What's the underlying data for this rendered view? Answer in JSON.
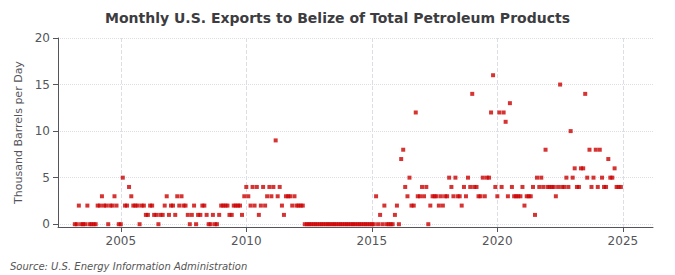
{
  "chart_data": {
    "type": "scatter",
    "title": "Monthly U.S. Exports to Belize of Total Petroleum Products",
    "ylabel": "Thousand Barrels per Day",
    "annotations": [
      "Source: U.S. Energy Information Administration"
    ],
    "color": "#cc0000",
    "marker": "square",
    "grid": true,
    "xlim": [
      2002.5,
      2026.2
    ],
    "xticks": [
      2005,
      2010,
      2015,
      2020,
      2025
    ],
    "ylim": [
      -0.3,
      20
    ],
    "yticks": [
      0,
      5,
      10,
      15,
      20
    ],
    "x": [
      2003.17,
      2003.25,
      2003.33,
      2003.42,
      2003.5,
      2003.58,
      2003.67,
      2003.75,
      2003.83,
      2003.92,
      2004.0,
      2004.08,
      2004.17,
      2004.25,
      2004.33,
      2004.42,
      2004.5,
      2004.58,
      2004.67,
      2004.75,
      2004.83,
      2004.92,
      2005.0,
      2005.08,
      2005.17,
      2005.25,
      2005.33,
      2005.42,
      2005.5,
      2005.58,
      2005.67,
      2005.75,
      2005.83,
      2005.92,
      2006.0,
      2006.08,
      2006.17,
      2006.25,
      2006.33,
      2006.42,
      2006.5,
      2006.58,
      2006.67,
      2006.75,
      2006.83,
      2006.92,
      2007.0,
      2007.08,
      2007.17,
      2007.25,
      2007.33,
      2007.42,
      2007.5,
      2007.58,
      2007.67,
      2007.75,
      2007.83,
      2007.92,
      2008.0,
      2008.08,
      2008.17,
      2008.25,
      2008.33,
      2008.42,
      2008.5,
      2008.58,
      2008.67,
      2008.75,
      2008.83,
      2008.92,
      2009.0,
      2009.08,
      2009.17,
      2009.25,
      2009.33,
      2009.42,
      2009.5,
      2009.58,
      2009.67,
      2009.75,
      2009.83,
      2009.92,
      2010.0,
      2010.08,
      2010.17,
      2010.25,
      2010.33,
      2010.42,
      2010.5,
      2010.58,
      2010.67,
      2010.75,
      2010.83,
      2010.92,
      2011.0,
      2011.08,
      2011.17,
      2011.25,
      2011.33,
      2011.42,
      2011.5,
      2011.58,
      2011.67,
      2011.75,
      2011.83,
      2011.92,
      2012.0,
      2012.08,
      2012.17,
      2012.25,
      2012.33,
      2012.42,
      2012.5,
      2012.58,
      2012.67,
      2012.75,
      2012.83,
      2012.92,
      2013.0,
      2013.08,
      2013.17,
      2013.25,
      2013.33,
      2013.42,
      2013.5,
      2013.58,
      2013.67,
      2013.75,
      2013.83,
      2013.92,
      2014.0,
      2014.08,
      2014.17,
      2014.25,
      2014.33,
      2014.42,
      2014.5,
      2014.58,
      2014.67,
      2014.75,
      2014.83,
      2014.92,
      2015.0,
      2015.08,
      2015.17,
      2015.25,
      2015.33,
      2015.42,
      2015.5,
      2015.58,
      2015.67,
      2015.75,
      2015.83,
      2015.92,
      2016.0,
      2016.08,
      2016.17,
      2016.25,
      2016.33,
      2016.42,
      2016.5,
      2016.58,
      2016.67,
      2016.75,
      2016.83,
      2016.92,
      2017.0,
      2017.08,
      2017.17,
      2017.25,
      2017.33,
      2017.42,
      2017.5,
      2017.58,
      2017.67,
      2017.75,
      2017.83,
      2017.92,
      2018.0,
      2018.08,
      2018.17,
      2018.25,
      2018.33,
      2018.42,
      2018.5,
      2018.58,
      2018.67,
      2018.75,
      2018.83,
      2018.92,
      2019.0,
      2019.08,
      2019.17,
      2019.25,
      2019.33,
      2019.42,
      2019.5,
      2019.58,
      2019.67,
      2019.75,
      2019.83,
      2019.92,
      2020.0,
      2020.08,
      2020.17,
      2020.25,
      2020.33,
      2020.42,
      2020.5,
      2020.58,
      2020.67,
      2020.75,
      2020.83,
      2020.92,
      2021.0,
      2021.08,
      2021.17,
      2021.25,
      2021.33,
      2021.42,
      2021.5,
      2021.58,
      2021.67,
      2021.75,
      2021.83,
      2021.92,
      2022.0,
      2022.08,
      2022.17,
      2022.25,
      2022.33,
      2022.42,
      2022.5,
      2022.58,
      2022.67,
      2022.75,
      2022.83,
      2022.92,
      2023.0,
      2023.08,
      2023.17,
      2023.25,
      2023.33,
      2023.42,
      2023.5,
      2023.58,
      2023.67,
      2023.75,
      2023.83,
      2023.92,
      2024.0,
      2024.08,
      2024.17,
      2024.25,
      2024.33,
      2024.42,
      2024.5,
      2024.58,
      2024.67,
      2024.75,
      2024.83,
      2024.92
    ],
    "values": [
      0,
      0,
      2,
      0,
      0,
      0,
      2,
      0,
      0,
      0,
      0,
      2,
      2,
      3,
      2,
      2,
      0,
      2,
      2,
      3,
      2,
      0,
      0,
      5,
      2,
      2,
      4,
      3,
      2,
      2,
      2,
      0,
      2,
      2,
      1,
      1,
      2,
      2,
      1,
      1,
      0,
      1,
      1,
      2,
      3,
      1,
      2,
      2,
      1,
      3,
      2,
      3,
      2,
      2,
      1,
      0,
      1,
      2,
      0,
      1,
      1,
      2,
      2,
      1,
      0,
      0,
      1,
      0,
      0,
      1,
      2,
      2,
      2,
      2,
      1,
      1,
      2,
      2,
      2,
      2,
      1,
      3,
      4,
      3,
      2,
      4,
      2,
      4,
      1,
      2,
      4,
      2,
      3,
      4,
      3,
      4,
      9,
      3,
      4,
      2,
      1,
      3,
      3,
      3,
      2,
      3,
      2,
      2,
      2,
      2,
      0,
      0,
      0,
      0,
      0,
      0,
      0,
      0,
      0,
      0,
      0,
      0,
      0,
      0,
      0,
      0,
      0,
      0,
      0,
      0,
      0,
      0,
      0,
      0,
      0,
      0,
      0,
      0,
      0,
      0,
      0,
      0,
      0,
      0,
      3,
      0,
      1,
      0,
      2,
      0,
      0,
      0,
      0,
      1,
      2,
      0,
      7,
      8,
      4,
      3,
      5,
      2,
      2,
      12,
      3,
      3,
      4,
      3,
      4,
      0,
      2,
      3,
      3,
      3,
      2,
      3,
      2,
      3,
      3,
      5,
      4,
      3,
      5,
      3,
      3,
      2,
      4,
      3,
      5,
      4,
      14,
      4,
      4,
      3,
      3,
      5,
      3,
      5,
      5,
      12,
      16,
      4,
      3,
      12,
      4,
      12,
      11,
      3,
      13,
      4,
      3,
      3,
      3,
      3,
      4,
      2,
      3,
      3,
      3,
      4,
      1,
      5,
      4,
      5,
      4,
      8,
      4,
      4,
      4,
      4,
      3,
      4,
      15,
      4,
      4,
      5,
      4,
      10,
      5,
      6,
      4,
      4,
      6,
      6,
      14,
      5,
      8,
      4,
      5,
      8,
      4,
      8,
      5,
      4,
      4,
      7,
      5,
      5,
      6,
      4,
      4,
      4
    ]
  }
}
